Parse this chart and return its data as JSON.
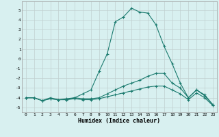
{
  "x": [
    0,
    1,
    2,
    3,
    4,
    5,
    6,
    7,
    8,
    9,
    10,
    11,
    12,
    13,
    14,
    15,
    16,
    17,
    18,
    19,
    20,
    21,
    22,
    23
  ],
  "line1": [
    -4.0,
    -4.0,
    -4.3,
    -4.0,
    -4.2,
    -4.1,
    -4.0,
    -3.6,
    -3.2,
    -1.3,
    0.5,
    3.8,
    4.3,
    5.2,
    4.8,
    4.7,
    3.5,
    1.3,
    -0.5,
    -2.5,
    -4.0,
    -3.2,
    -3.7,
    -4.7
  ],
  "line2": [
    -4.0,
    -4.0,
    -4.3,
    -4.1,
    -4.2,
    -4.2,
    -4.0,
    -4.1,
    -4.1,
    -4.0,
    -3.6,
    -3.2,
    -2.8,
    -2.5,
    -2.2,
    -1.8,
    -1.5,
    -1.5,
    -2.5,
    -3.0,
    -4.0,
    -3.2,
    -3.8,
    -4.7
  ],
  "line3": [
    -4.0,
    -4.0,
    -4.3,
    -4.1,
    -4.2,
    -4.2,
    -4.1,
    -4.2,
    -4.2,
    -4.1,
    -3.9,
    -3.7,
    -3.5,
    -3.3,
    -3.1,
    -2.9,
    -2.8,
    -2.8,
    -3.2,
    -3.6,
    -4.2,
    -3.5,
    -4.0,
    -4.8
  ],
  "line_color": "#1a7a6e",
  "bg_color": "#d8f0f0",
  "grid_color": "#c0d0d0",
  "xlabel": "Humidex (Indice chaleur)",
  "ylim": [
    -5.5,
    5.9
  ],
  "xlim": [
    -0.5,
    23.5
  ],
  "yticks": [
    -5,
    -4,
    -3,
    -2,
    -1,
    0,
    1,
    2,
    3,
    4,
    5
  ],
  "xticks": [
    0,
    1,
    2,
    3,
    4,
    5,
    6,
    7,
    8,
    9,
    10,
    11,
    12,
    13,
    14,
    15,
    16,
    17,
    18,
    19,
    20,
    21,
    22,
    23
  ]
}
